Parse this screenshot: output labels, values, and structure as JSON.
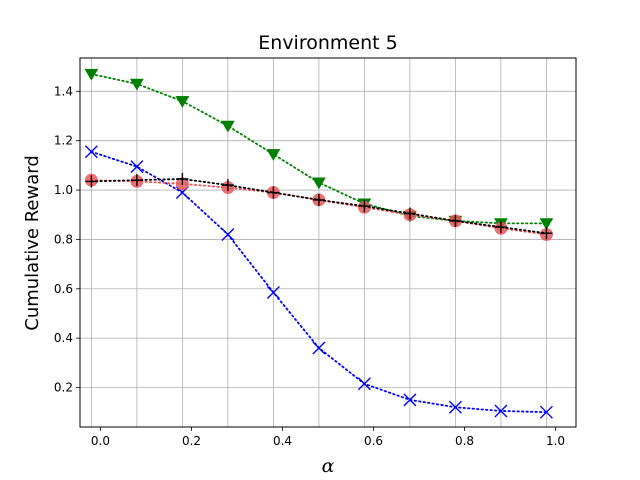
{
  "chart_data": {
    "type": "line",
    "title": "Environment 5",
    "xlabel": "α",
    "ylabel": "Cumulative Reward",
    "xlim": [
      -0.045,
      1.045
    ],
    "ylim": [
      0.04,
      1.535
    ],
    "xticks": [
      0.0,
      0.2,
      0.4,
      0.6,
      0.8,
      1.0
    ],
    "xtick_labels": [
      "0.0",
      "0.2",
      "0.4",
      "0.6",
      "0.8",
      "1.0"
    ],
    "yticks": [
      0.2,
      0.4,
      0.6,
      0.8,
      1.0,
      1.2,
      1.4
    ],
    "ytick_labels": [
      "0.2",
      "0.4",
      "0.6",
      "0.8",
      "1.0",
      "1.2",
      "1.4"
    ],
    "grid": true,
    "x": [
      -0.02,
      0.08,
      0.18,
      0.28,
      0.38,
      0.48,
      0.58,
      0.68,
      0.78,
      0.88,
      0.98
    ],
    "series": [
      {
        "color": "#008000",
        "marker": "triangle-down",
        "linestyle": "dotted",
        "values": [
          1.47,
          1.43,
          1.36,
          1.26,
          1.145,
          1.03,
          0.945,
          0.895,
          0.875,
          0.865,
          0.865
        ]
      },
      {
        "color": "#0000ff",
        "marker": "x",
        "linestyle": "dotted",
        "values": [
          1.155,
          1.095,
          0.99,
          0.82,
          0.585,
          0.36,
          0.215,
          0.15,
          0.12,
          0.105,
          0.1
        ]
      },
      {
        "color": "#e8575a",
        "marker": "circle",
        "linestyle": "dotted",
        "values": [
          1.04,
          1.035,
          1.025,
          1.01,
          0.99,
          0.96,
          0.93,
          0.9,
          0.875,
          0.845,
          0.82
        ]
      },
      {
        "color": "#000000",
        "marker": "plus",
        "linestyle": "dotted",
        "values": [
          1.035,
          1.04,
          1.045,
          1.02,
          0.99,
          0.96,
          0.935,
          0.905,
          0.875,
          0.85,
          0.825
        ]
      }
    ]
  }
}
